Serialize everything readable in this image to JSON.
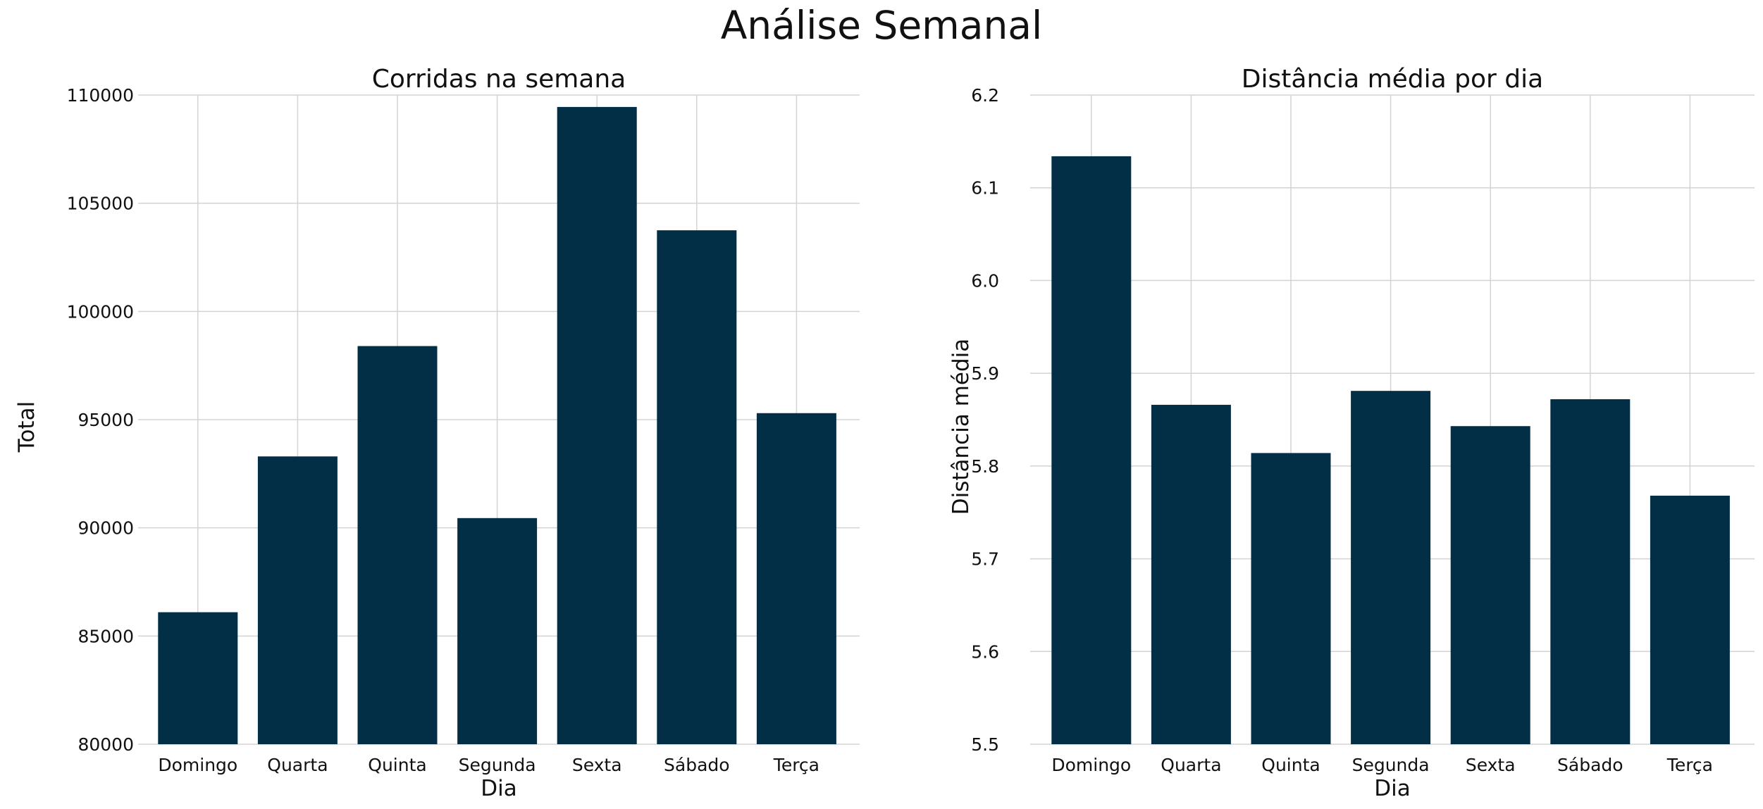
{
  "figure": {
    "title": "Análise Semanal"
  },
  "colors": {
    "bar": "#032f46",
    "grid": "#d3d3d3",
    "background": "#ffffff"
  },
  "chart_data": [
    {
      "type": "bar",
      "title": "Corridas na semana",
      "xlabel": "Dia",
      "ylabel": "Total",
      "categories": [
        "Domingo",
        "Quarta",
        "Quinta",
        "Segunda",
        "Sexta",
        "Sábado",
        "Terça"
      ],
      "values": [
        86100,
        93300,
        98400,
        90450,
        109450,
        103750,
        95300
      ],
      "ylim": [
        80000,
        110000
      ],
      "yticks": [
        "80000",
        "85000",
        "90000",
        "95000",
        "100000",
        "105000",
        "110000"
      ],
      "grid": true
    },
    {
      "type": "bar",
      "title": "Distância média por dia",
      "xlabel": "Dia",
      "ylabel": "Distância média",
      "categories": [
        "Domingo",
        "Quarta",
        "Quinta",
        "Segunda",
        "Sexta",
        "Sábado",
        "Terça"
      ],
      "values": [
        6.134,
        5.866,
        5.814,
        5.881,
        5.843,
        5.872,
        5.768
      ],
      "ylim": [
        5.5,
        6.2
      ],
      "yticks": [
        "5.5",
        "5.6",
        "5.7",
        "5.8",
        "5.9",
        "6.0",
        "6.1",
        "6.2"
      ],
      "grid": true
    }
  ]
}
